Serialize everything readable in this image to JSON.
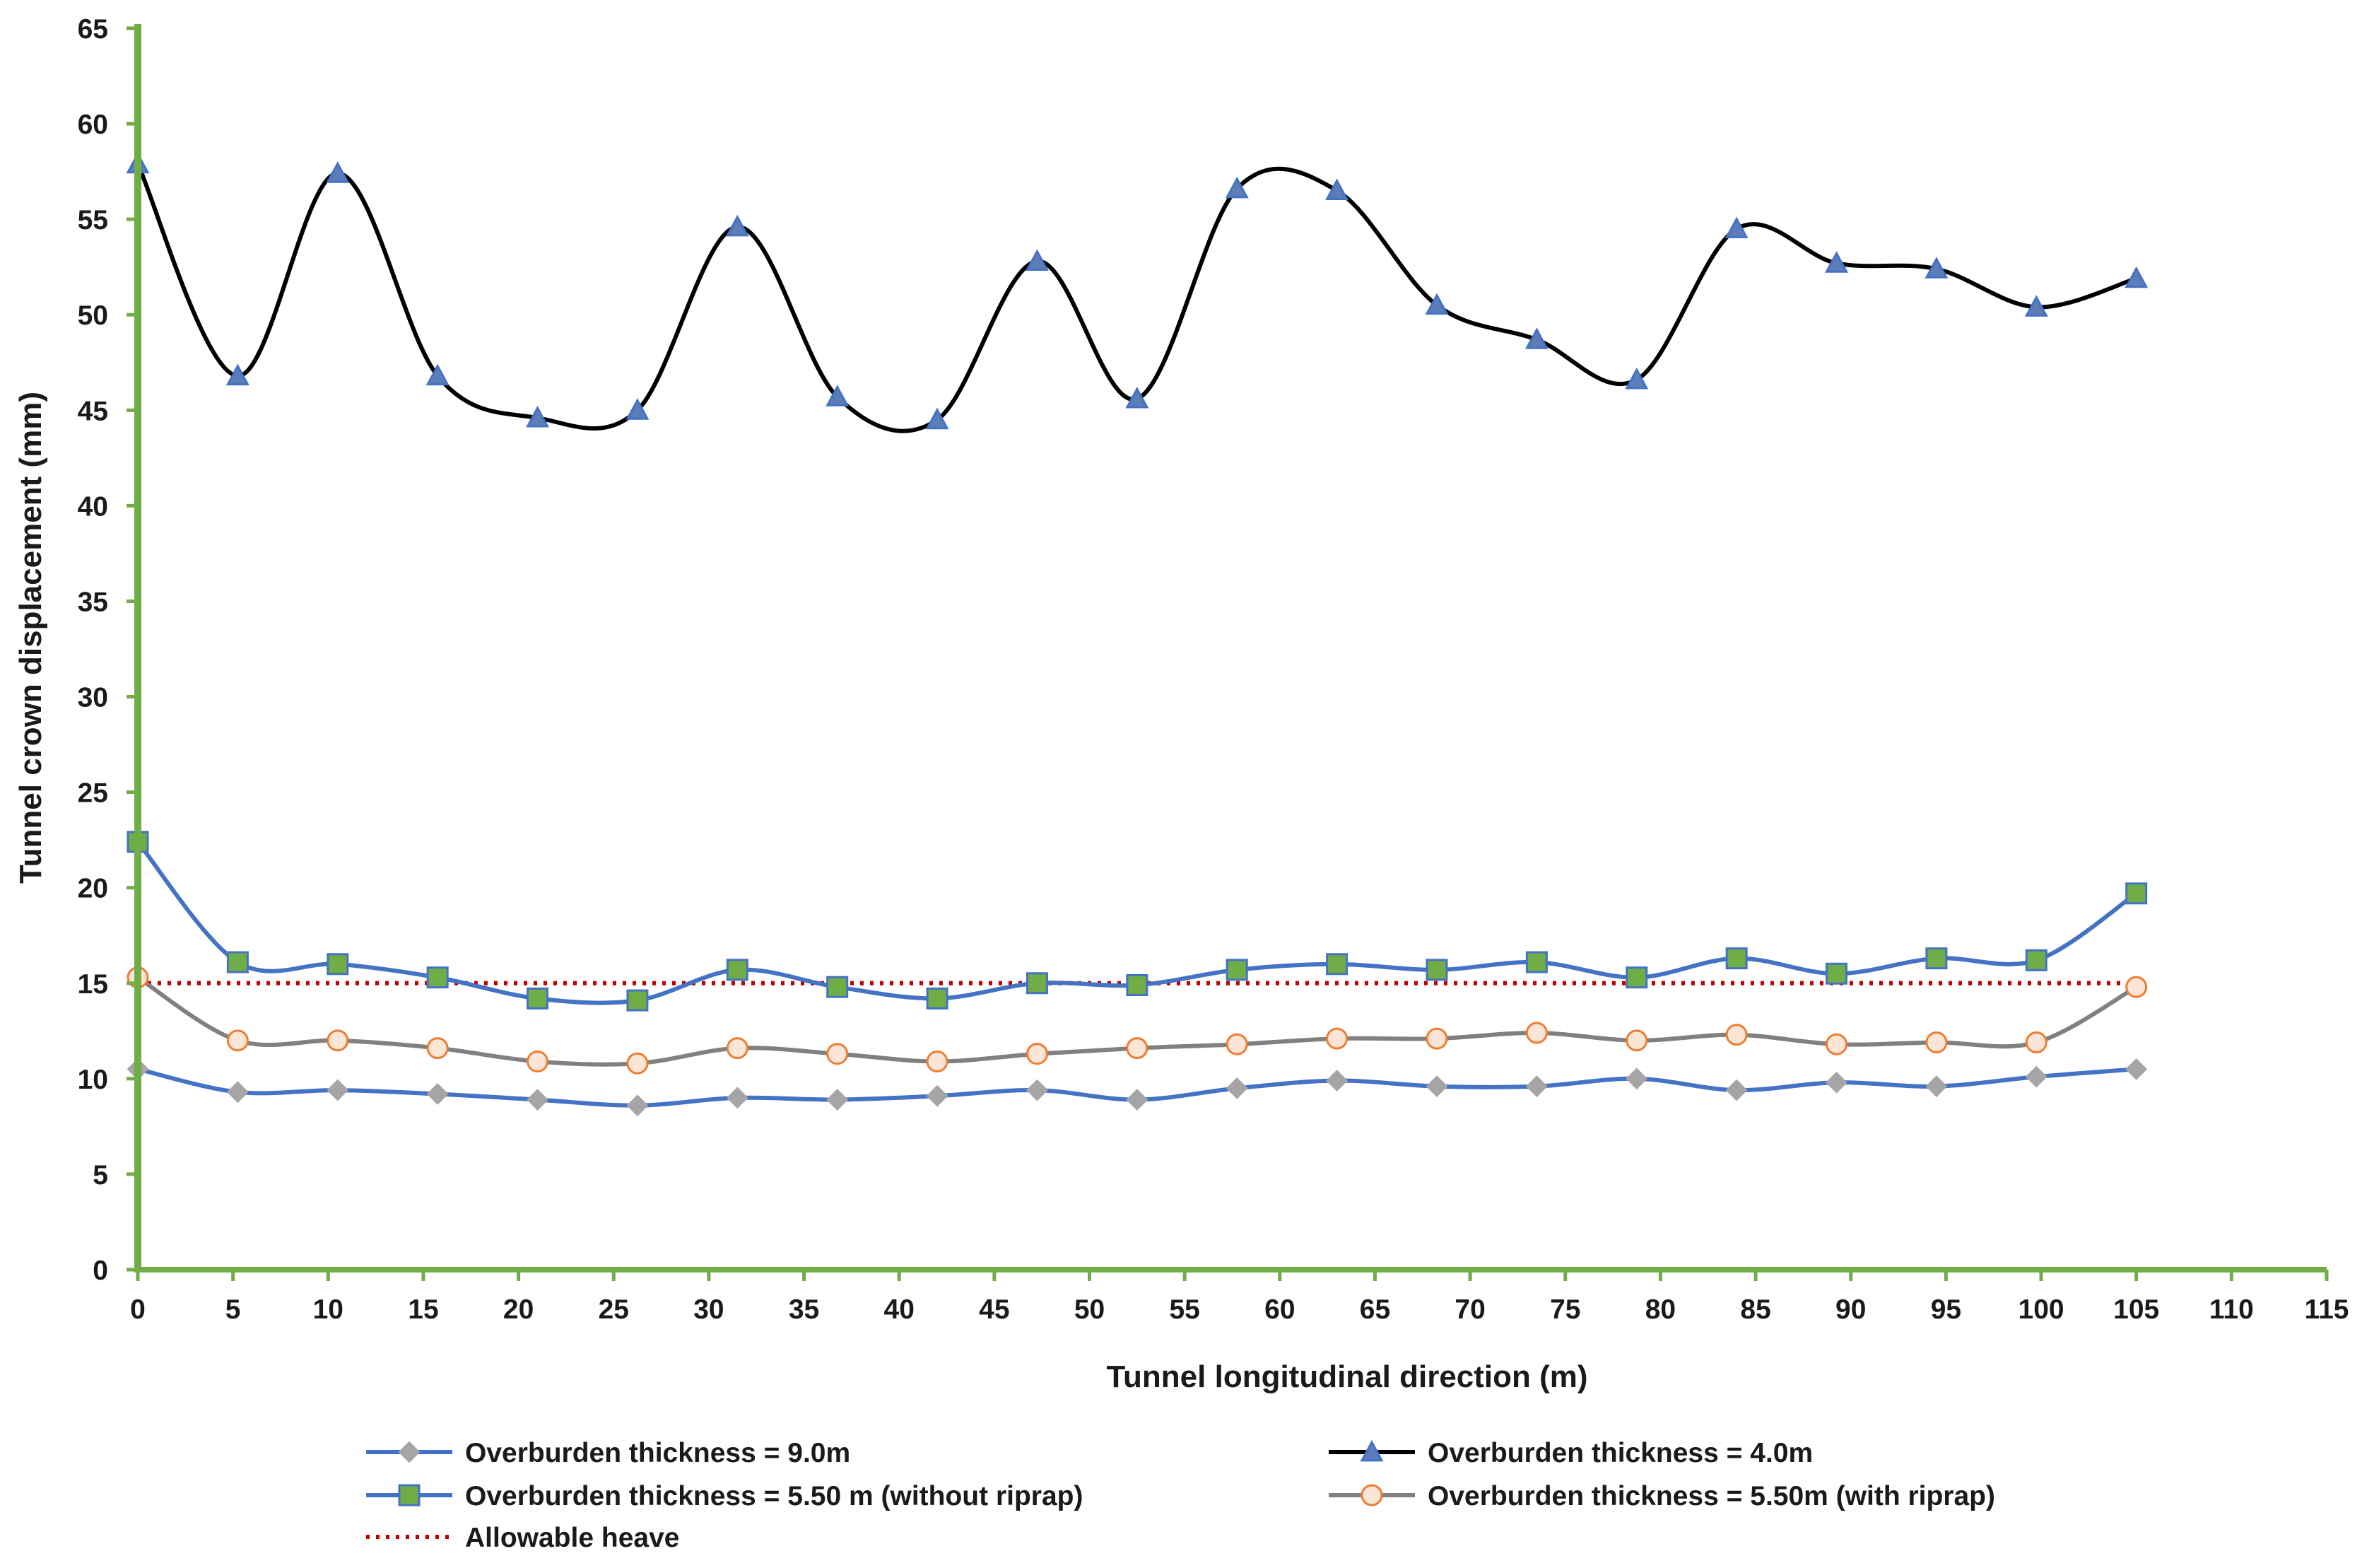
{
  "chart_data": {
    "type": "line",
    "title": "",
    "xlabel": "Tunnel longitudinal direction (m)",
    "ylabel": "Tunnel crown displacement (mm)",
    "xlim": [
      0,
      115
    ],
    "ylim": [
      0,
      65
    ],
    "xticks": [
      0,
      5,
      10,
      15,
      20,
      25,
      30,
      35,
      40,
      45,
      50,
      55,
      60,
      65,
      70,
      75,
      80,
      85,
      90,
      95,
      100,
      105,
      110,
      115
    ],
    "yticks": [
      0,
      5,
      10,
      15,
      20,
      25,
      30,
      35,
      40,
      45,
      50,
      55,
      60,
      65
    ],
    "grid": false,
    "legend_position": "bottom",
    "x": [
      0,
      5.25,
      10.5,
      15.75,
      21,
      26.25,
      31.5,
      36.75,
      42,
      47.25,
      52.5,
      57.75,
      63,
      68.25,
      73.5,
      78.75,
      84,
      89.25,
      94.5,
      99.75,
      105
    ],
    "series": [
      {
        "name": "Overburden thickness = 9.0m",
        "line_color": "#4472C4",
        "marker": "diamond",
        "marker_fill": "#A5A5A5",
        "marker_stroke": "#A5A5A5",
        "values": [
          10.5,
          9.3,
          9.4,
          9.2,
          8.9,
          8.6,
          9.0,
          8.9,
          9.1,
          9.4,
          8.9,
          9.5,
          9.9,
          9.6,
          9.6,
          10.0,
          9.4,
          9.8,
          9.6,
          10.1,
          10.5
        ]
      },
      {
        "name": "Overburden thickness = 4.0m",
        "line_color": "#000000",
        "marker": "triangle",
        "marker_fill": "#5B7DB8",
        "marker_stroke": "#4472C4",
        "values": [
          57.9,
          46.8,
          57.4,
          46.8,
          44.6,
          45.0,
          54.6,
          45.7,
          44.5,
          52.8,
          45.6,
          56.6,
          56.5,
          50.5,
          48.7,
          46.6,
          54.5,
          52.7,
          52.4,
          50.4,
          51.9
        ]
      },
      {
        "name": "Overburden thickness = 5.50 m (without riprap)",
        "line_color": "#4472C4",
        "marker": "square",
        "marker_fill": "#70AD47",
        "marker_stroke": "#4472C4",
        "values": [
          22.4,
          16.1,
          16.0,
          15.3,
          14.2,
          14.1,
          15.7,
          14.8,
          14.2,
          15.0,
          14.9,
          15.7,
          16.0,
          15.7,
          16.1,
          15.3,
          16.3,
          15.5,
          16.3,
          16.2,
          19.7
        ]
      },
      {
        "name": "Overburden thickness = 5.50m (with riprap)",
        "line_color": "#808080",
        "marker": "circle",
        "marker_fill": "#FBE5D6",
        "marker_stroke": "#ED7D31",
        "values": [
          15.3,
          12.0,
          12.0,
          11.6,
          10.9,
          10.8,
          11.6,
          11.3,
          10.9,
          11.3,
          11.6,
          11.8,
          12.1,
          12.1,
          12.4,
          12.0,
          12.3,
          11.8,
          11.9,
          11.9,
          14.8
        ]
      }
    ],
    "reference_lines": [
      {
        "name": "Allowable heave",
        "y": 15,
        "x_range": [
          0,
          105
        ],
        "color": "#C00000",
        "style": "dotted"
      }
    ],
    "axis_color": "#70AD47"
  }
}
